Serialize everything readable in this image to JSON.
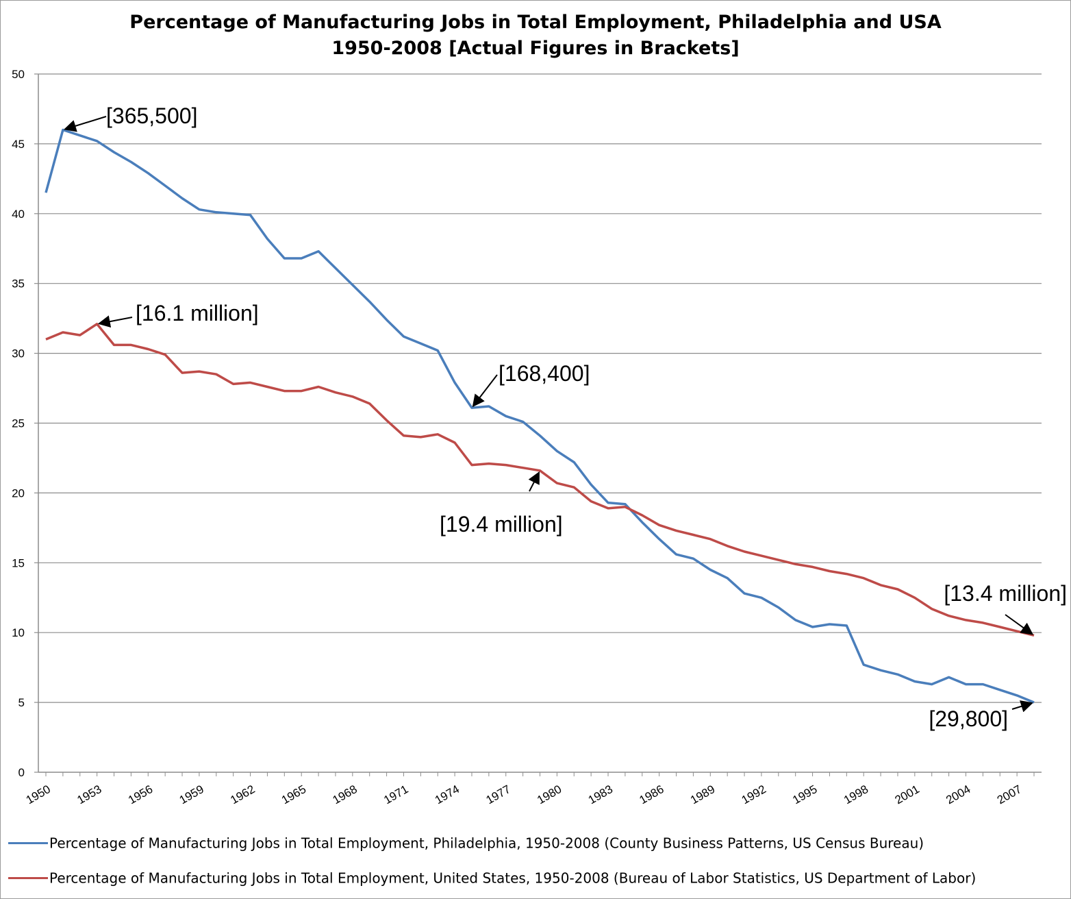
{
  "chart_data": {
    "type": "line",
    "title": "Percentage of Manufacturing Jobs in Total Employment, Philadelphia and USA",
    "subtitle": "1950-2008 [Actual Figures in Brackets]",
    "x": [
      1950,
      1951,
      1952,
      1953,
      1954,
      1955,
      1956,
      1957,
      1958,
      1959,
      1960,
      1961,
      1962,
      1963,
      1964,
      1965,
      1966,
      1967,
      1968,
      1969,
      1970,
      1971,
      1972,
      1973,
      1974,
      1975,
      1976,
      1977,
      1978,
      1979,
      1980,
      1981,
      1982,
      1983,
      1984,
      1985,
      1986,
      1987,
      1988,
      1989,
      1990,
      1991,
      1992,
      1993,
      1994,
      1995,
      1996,
      1997,
      1998,
      1999,
      2000,
      2001,
      2002,
      2003,
      2004,
      2005,
      2006,
      2007,
      2008
    ],
    "x_tick_labels": [
      "1950",
      "1953",
      "1956",
      "1959",
      "1962",
      "1965",
      "1968",
      "1971",
      "1974",
      "1977",
      "1980",
      "1983",
      "1986",
      "1989",
      "1992",
      "1995",
      "1998",
      "2001",
      "2004",
      "2007"
    ],
    "ylim": [
      0,
      50
    ],
    "y_ticks": [
      0,
      5,
      10,
      15,
      20,
      25,
      30,
      35,
      40,
      45,
      50
    ],
    "grid": true,
    "legend_position": "bottom",
    "series": [
      {
        "name": "Percentage of Manufacturing Jobs in Total Employment, Philadelphia, 1950-2008 (County Business Patterns, US Census Bureau)",
        "color": "#4a7ebb",
        "values": [
          41.5,
          46.0,
          45.6,
          45.2,
          44.4,
          43.7,
          42.9,
          42.0,
          41.1,
          40.3,
          40.1,
          40.0,
          39.9,
          38.2,
          36.8,
          36.8,
          37.3,
          36.1,
          34.9,
          33.7,
          32.4,
          31.2,
          30.7,
          30.2,
          27.9,
          26.1,
          26.2,
          25.5,
          25.1,
          24.1,
          23.0,
          22.2,
          20.6,
          19.3,
          19.2,
          17.9,
          16.7,
          15.6,
          15.3,
          14.5,
          13.9,
          12.8,
          12.5,
          11.8,
          10.9,
          10.4,
          10.6,
          10.5,
          7.7,
          7.3,
          7.0,
          6.5,
          6.3,
          6.8,
          6.3,
          6.3,
          5.9,
          5.5,
          5.0
        ]
      },
      {
        "name": "Percentage of Manufacturing Jobs in Total Employment, United States, 1950-2008 (Bureau of Labor Statistics, US Department of Labor)",
        "color": "#be4b48",
        "values": [
          31.0,
          31.5,
          31.3,
          32.1,
          30.6,
          30.6,
          30.3,
          29.9,
          28.6,
          28.7,
          28.5,
          27.8,
          27.9,
          27.6,
          27.3,
          27.3,
          27.6,
          27.2,
          26.9,
          26.4,
          25.2,
          24.1,
          24.0,
          24.2,
          23.6,
          22.0,
          22.1,
          22.0,
          21.8,
          21.6,
          20.7,
          20.4,
          19.4,
          18.9,
          19.0,
          18.4,
          17.7,
          17.3,
          17.0,
          16.7,
          16.2,
          15.8,
          15.5,
          15.2,
          14.9,
          14.7,
          14.4,
          14.2,
          13.9,
          13.4,
          13.1,
          12.5,
          11.7,
          11.2,
          10.9,
          10.7,
          10.4,
          10.1,
          9.8
        ]
      }
    ],
    "annotations": [
      {
        "text": "[365,500]",
        "series": 0,
        "year": 1951
      },
      {
        "text": "[168,400]",
        "series": 0,
        "year": 1975
      },
      {
        "text": "[29,800]",
        "series": 0,
        "year": 2008
      },
      {
        "text": "[16.1 million]",
        "series": 1,
        "year": 1953
      },
      {
        "text": "[19.4 million]",
        "series": 1,
        "year": 1979
      },
      {
        "text": "[13.4 million]",
        "series": 1,
        "year": 2008
      }
    ]
  }
}
